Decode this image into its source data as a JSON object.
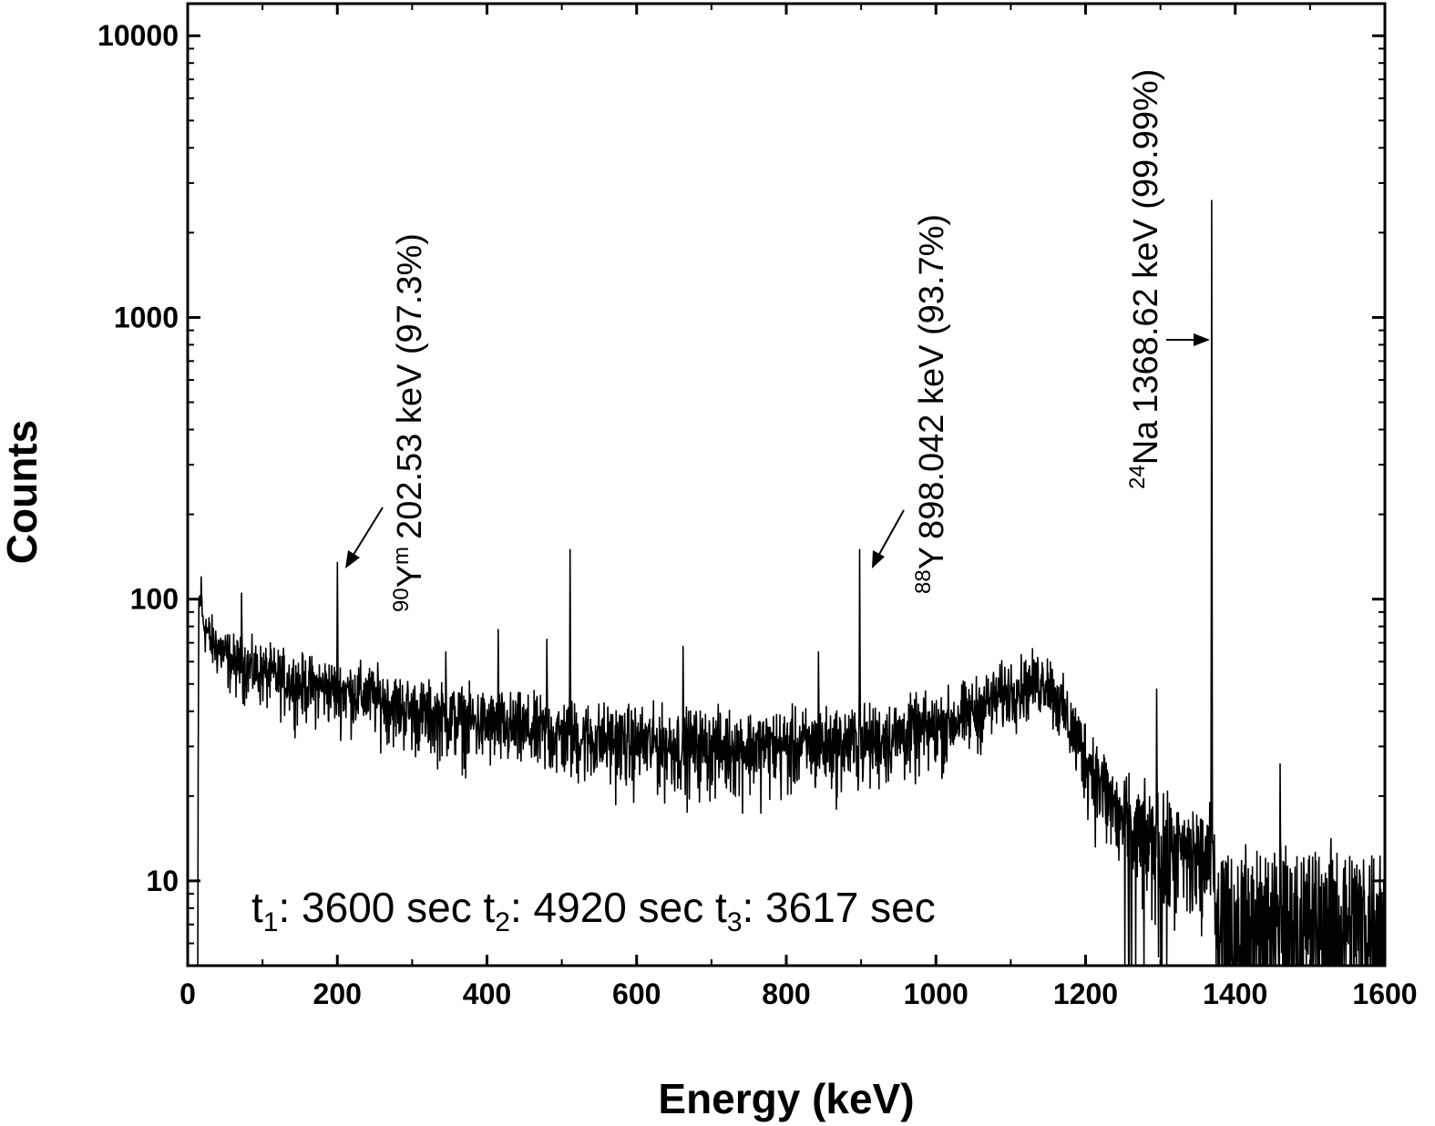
{
  "chart_data": {
    "type": "line",
    "xlabel": "Energy (keV)",
    "ylabel": "Counts",
    "xlim": [
      0,
      1600
    ],
    "ylim": [
      5,
      13000
    ],
    "yscale": "log",
    "x_ticks": [
      0,
      200,
      400,
      600,
      800,
      1000,
      1200,
      1400,
      1600
    ],
    "x_tick_labels": [
      "0",
      "200",
      "400",
      "600",
      "800",
      "1000",
      "1200",
      "1400",
      "1600"
    ],
    "y_ticks": [
      10,
      100,
      1000,
      10000
    ],
    "y_tick_labels": [
      "10",
      "100",
      "1000",
      "10000"
    ],
    "background_profile": {
      "x": [
        13,
        15,
        20,
        30,
        60,
        100,
        150,
        200,
        250,
        300,
        400,
        500,
        600,
        700,
        800,
        900,
        1000,
        1050,
        1100,
        1150,
        1160,
        1200,
        1250,
        1300,
        1350,
        1365,
        1375,
        1400,
        1500,
        1600
      ],
      "y": [
        5,
        100,
        85,
        72,
        60,
        55,
        50,
        48,
        45,
        40,
        36,
        33,
        31,
        30,
        30,
        31,
        35,
        40,
        48,
        52,
        45,
        28,
        16,
        13,
        12,
        12,
        9,
        8,
        8,
        8
      ]
    },
    "peaks": [
      {
        "x": 18,
        "y": 120
      },
      {
        "x": 72,
        "y": 105
      },
      {
        "x": 200,
        "y": 135
      },
      {
        "x": 345,
        "y": 65
      },
      {
        "x": 415,
        "y": 78
      },
      {
        "x": 480,
        "y": 72
      },
      {
        "x": 511,
        "y": 150
      },
      {
        "x": 662,
        "y": 68
      },
      {
        "x": 843,
        "y": 65
      },
      {
        "x": 898,
        "y": 150
      },
      {
        "x": 1295,
        "y": 48
      },
      {
        "x": 1368.6,
        "y": 2600
      },
      {
        "x": 1460,
        "y": 26
      }
    ],
    "annotations": [
      {
        "isotope_mass": "90",
        "isotope_symbol": "Y",
        "isotope_state": "m",
        "text": "202.53 keV (97.3%)",
        "energy": 202.53
      },
      {
        "isotope_mass": "88",
        "isotope_symbol": "Y",
        "isotope_state": "",
        "text": "898.042 keV (93.7%)",
        "energy": 898.042
      },
      {
        "isotope_mass": "24",
        "isotope_symbol": "Na",
        "isotope_state": "",
        "text": "1368.62 keV (99.99%)",
        "energy": 1368.62
      }
    ],
    "timing": {
      "t1_sym": "t",
      "t1_sub": "1",
      "t1_val": ": 3600 sec ",
      "t2_sym": "t",
      "t2_sub": "2",
      "t2_val": ": 4920 sec ",
      "t3_sym": "t",
      "t3_sub": "3",
      "t3_val": ": 3617 sec"
    }
  }
}
